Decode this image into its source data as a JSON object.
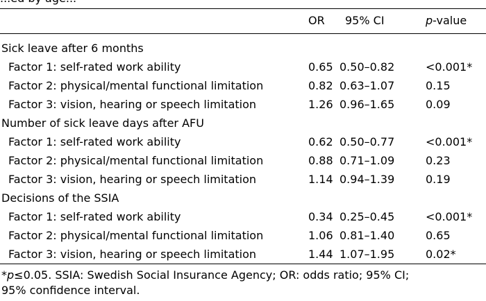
{
  "partial_heading": "...ed by age...",
  "columns": {
    "or": "OR",
    "ci": "95% CI",
    "p_italic": "p",
    "p_rest": "-value"
  },
  "sections": [
    {
      "title": "Sick leave after 6 months",
      "rows": [
        {
          "label": "Factor 1: self-rated work ability",
          "or": "0.65",
          "ci": "0.50–0.82",
          "p": "<0.001*"
        },
        {
          "label": "Factor 2: physical/mental functional limitation",
          "or": "0.82",
          "ci": "0.63–1.07",
          "p": "0.15"
        },
        {
          "label": "Factor 3: vision, hearing or speech limitation",
          "or": "1.26",
          "ci": "0.96–1.65",
          "p": "0.09"
        }
      ]
    },
    {
      "title": "Number of sick leave days after AFU",
      "rows": [
        {
          "label": "Factor 1: self-rated work ability",
          "or": "0.62",
          "ci": "0.50–0.77",
          "p": "<0.001*"
        },
        {
          "label": "Factor 2: physical/mental functional limitation",
          "or": "0.88",
          "ci": "0.71–1.09",
          "p": "0.23"
        },
        {
          "label": "Factor 3: vision, hearing or speech limitation",
          "or": "1.14",
          "ci": "0.94–1.39",
          "p": "0.19"
        }
      ]
    },
    {
      "title": "Decisions of the SSIA",
      "rows": [
        {
          "label": "Factor 1: self-rated work ability",
          "or": "0.34",
          "ci": "0.25–0.45",
          "p": "<0.001*"
        },
        {
          "label": "Factor 2: physical/mental functional limitation",
          "or": "1.06",
          "ci": "0.81–1.40",
          "p": "0.65"
        },
        {
          "label": "Factor 3: vision, hearing or speech limitation",
          "or": "1.44",
          "ci": "1.07–1.95",
          "p": "0.02*"
        }
      ]
    }
  ],
  "footnote": {
    "star": "*",
    "p_italic": "p",
    "line1_rest": "≤0.05. SSIA: Swedish Social Insurance Agency; OR: odds ratio; 95% CI;",
    "line2": "95% confidence interval."
  }
}
